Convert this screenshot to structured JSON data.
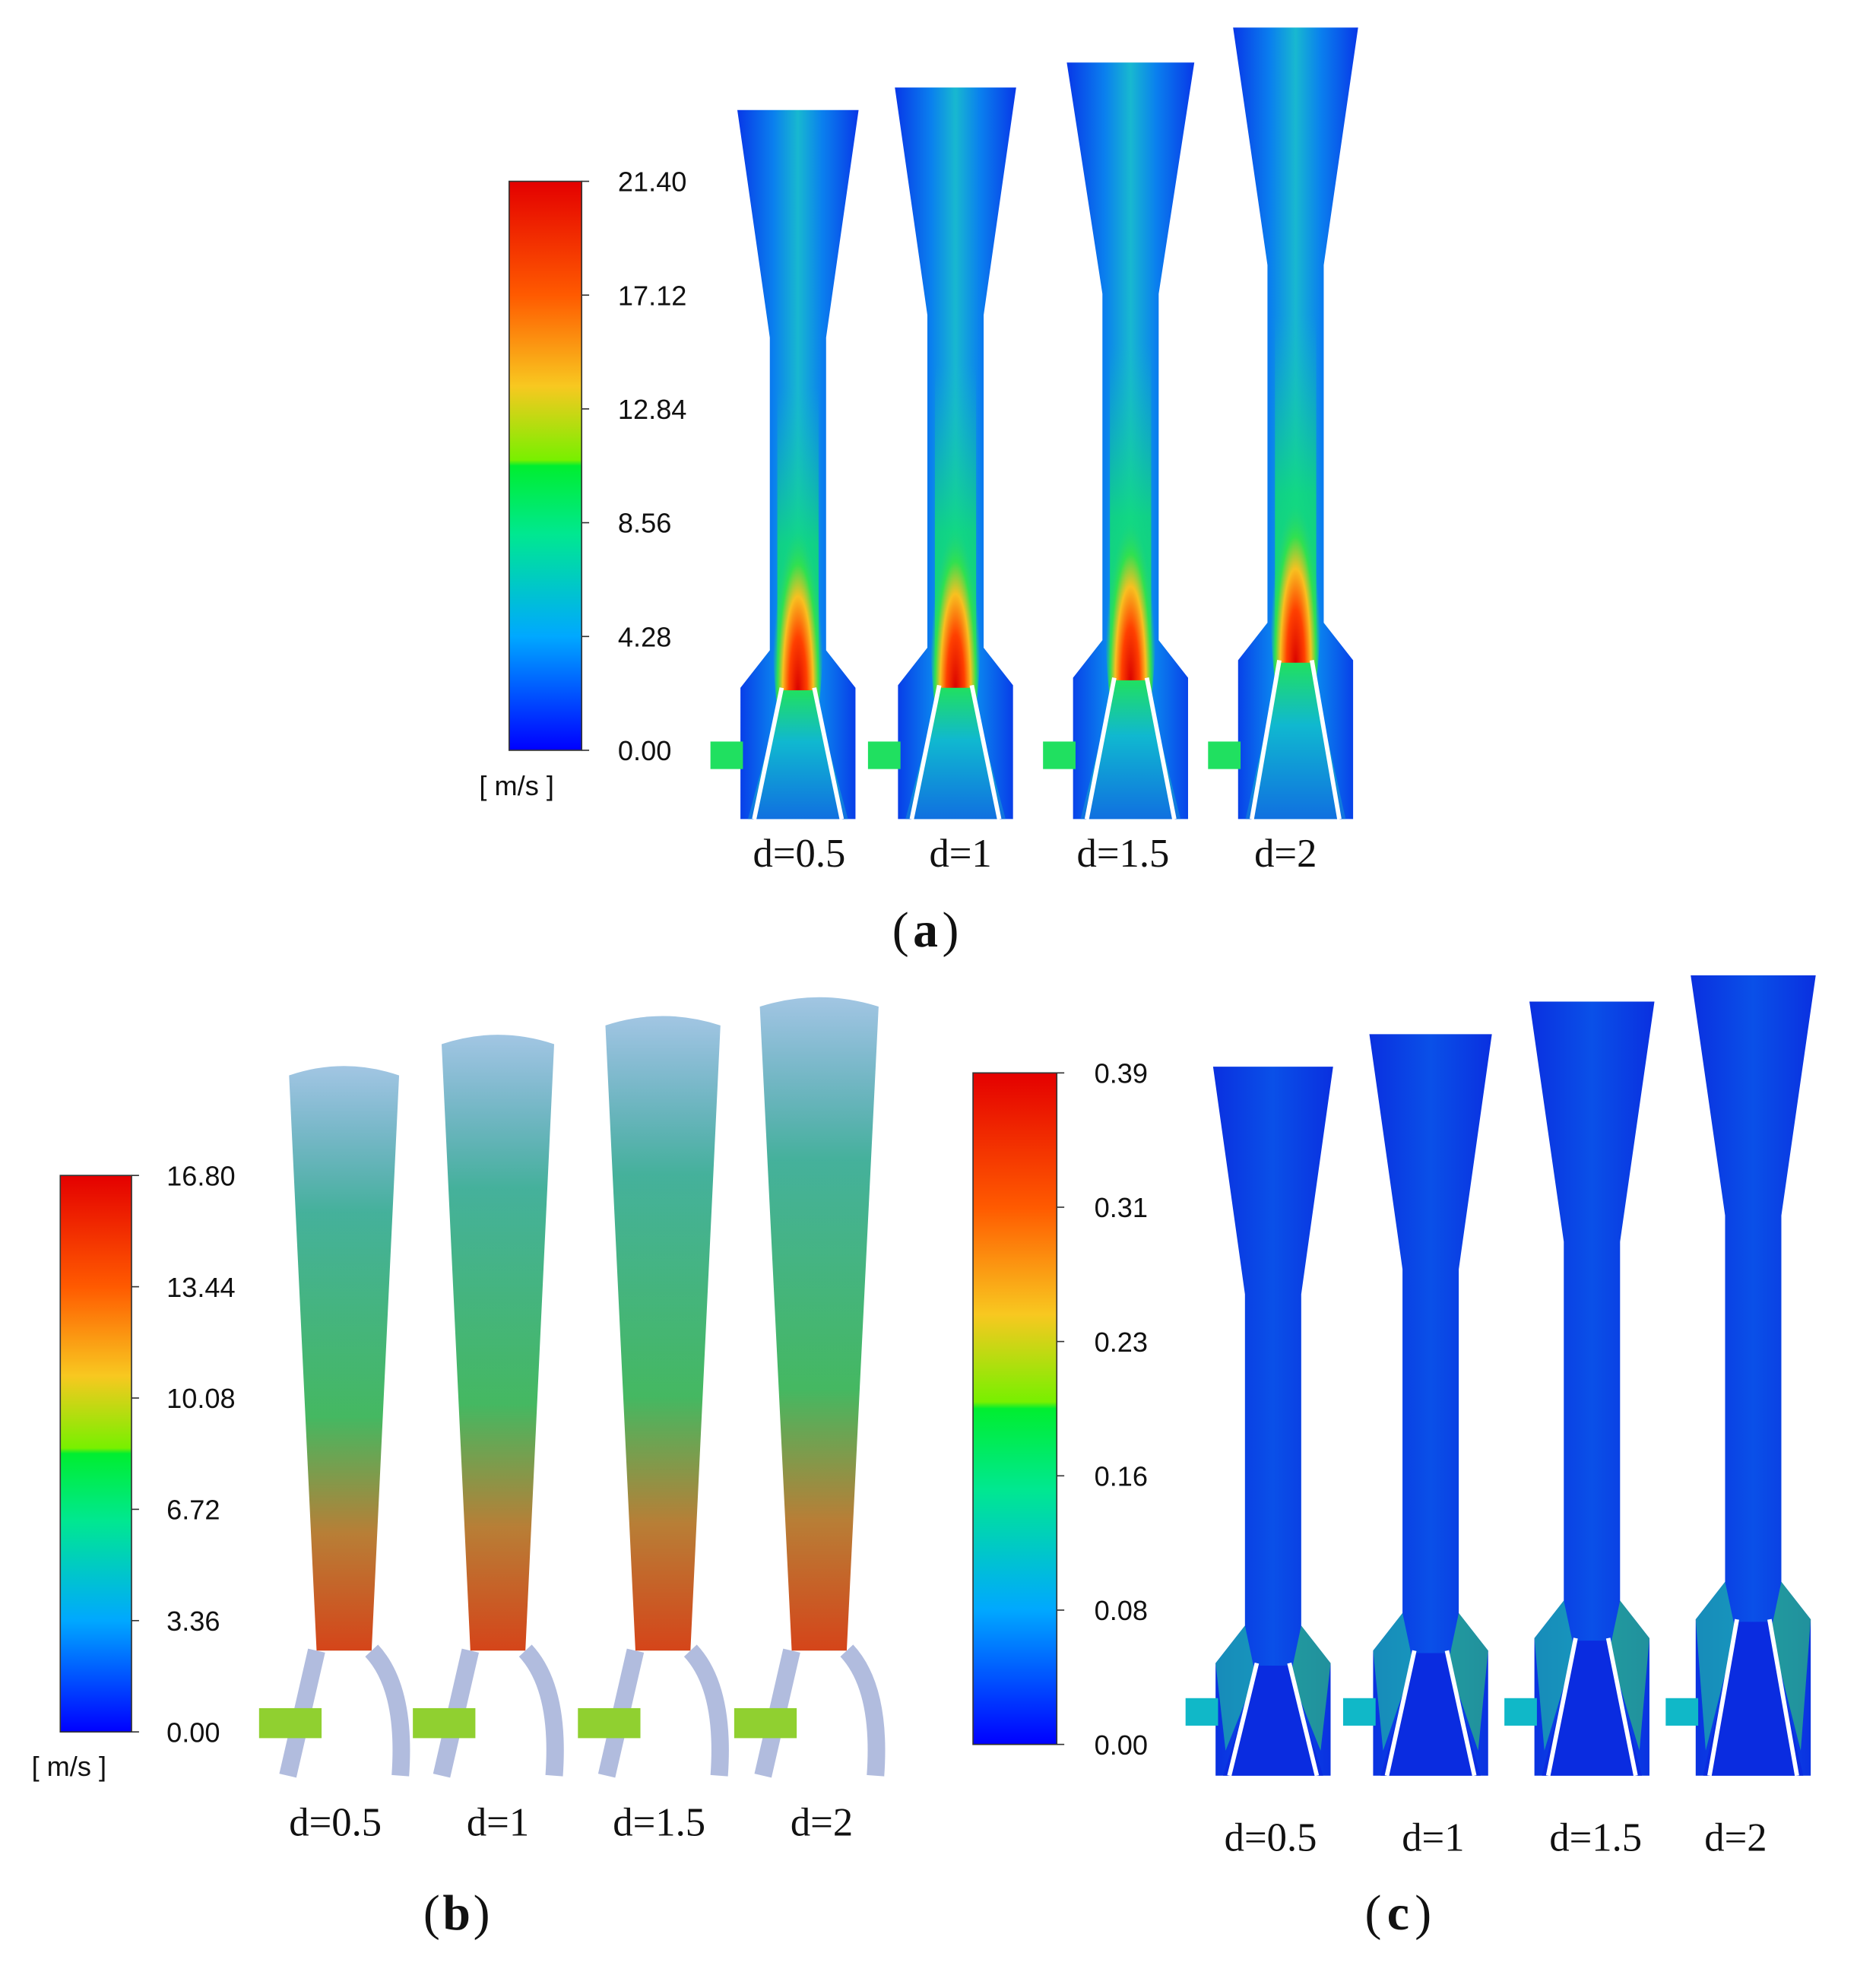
{
  "panels": [
    {
      "label": "a",
      "colorbar": {
        "ticks": [
          "21.40",
          "17.12",
          "12.84",
          "8.56",
          "4.28",
          "0.00"
        ],
        "unit": "[ m/s ]"
      },
      "cases": [
        "d=0.5",
        "d=1",
        "d=1.5",
        "d=2"
      ]
    },
    {
      "label": "b",
      "colorbar": {
        "ticks": [
          "16.80",
          "13.44",
          "10.08",
          "6.72",
          "3.36",
          "0.00"
        ],
        "unit": "[ m/s ]"
      },
      "cases": [
        "d=0.5",
        "d=1",
        "d=1.5",
        "d=2"
      ]
    },
    {
      "label": "c",
      "colorbar": {
        "ticks": [
          "0.39",
          "0.31",
          "0.23",
          "0.16",
          "0.08",
          "0.00"
        ]
      },
      "cases": [
        "d=0.5",
        "d=1",
        "d=1.5",
        "d=2"
      ]
    }
  ],
  "colormap": [
    "#0000ff",
    "#00a8ff",
    "#00e88a",
    "#00ee30",
    "#80f000",
    "#f8c820",
    "#ff6a00",
    "#e80000"
  ]
}
